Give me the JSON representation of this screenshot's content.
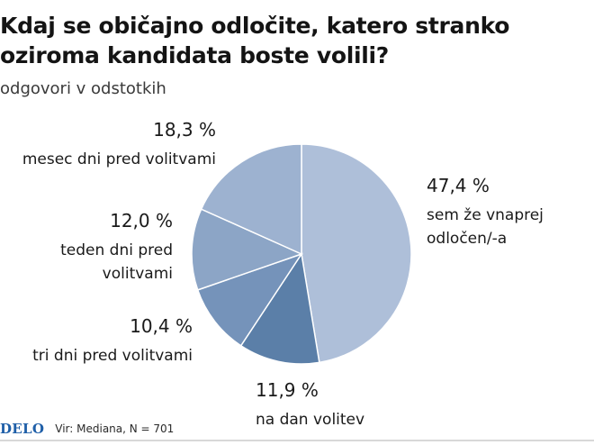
{
  "header": {
    "title": "Kdaj se običajno odločite, katero stranko oziroma kandidata boste volili?",
    "subtitle": "odgovori v odstotkih"
  },
  "footer": {
    "logo": "DELO",
    "source": "Vir: Mediana, N = 701"
  },
  "chart_data": {
    "type": "pie",
    "title": "Kdaj se običajno odločite, katero stranko oziroma kandidata boste volili?",
    "subtitle": "odgovori v odstotkih",
    "unit": "%",
    "slices": [
      {
        "label": "sem že vnaprej odločen/-a",
        "value": 47.4,
        "value_label": "47,4 %",
        "color": "#aebfd9"
      },
      {
        "label": "na dan volitev",
        "value": 11.9,
        "value_label": "11,9 %",
        "color": "#5b7fa8"
      },
      {
        "label": "tri dni pred volitvami",
        "value": 10.4,
        "value_label": "10,4 %",
        "color": "#7593ba"
      },
      {
        "label": "teden dni pred volitvami",
        "value": 12.0,
        "value_label": "12,0 %",
        "color": "#8ca5c6"
      },
      {
        "label": "mesec dni pred volitvami",
        "value": 18.3,
        "value_label": "18,3 %",
        "color": "#9db2d0"
      }
    ],
    "start_angle": "12 o'clock",
    "direction": "clockwise",
    "legend": "none (direct labels)"
  }
}
